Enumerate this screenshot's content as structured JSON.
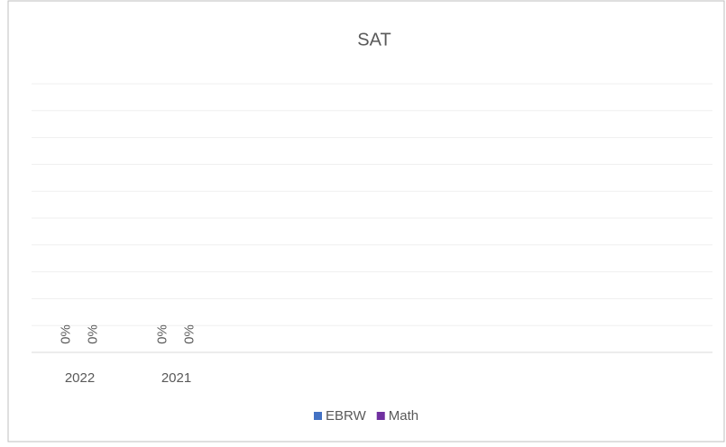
{
  "chart_data": {
    "type": "bar",
    "title": "SAT",
    "categories": [
      "2022",
      "2021"
    ],
    "series": [
      {
        "name": "EBRW",
        "color": "#4472c4",
        "values": [
          0,
          0
        ],
        "value_labels": [
          "0%",
          "0%"
        ]
      },
      {
        "name": "Math",
        "color": "#7030a0",
        "values": [
          0,
          0
        ],
        "value_labels": [
          "0%",
          "0%"
        ]
      }
    ],
    "ylim": [
      0,
      100
    ],
    "yticks": [
      0,
      10,
      20,
      30,
      40,
      50,
      60,
      70,
      80,
      90,
      100
    ],
    "show_ytick_labels": false,
    "grid": true,
    "legend": "bottom"
  }
}
